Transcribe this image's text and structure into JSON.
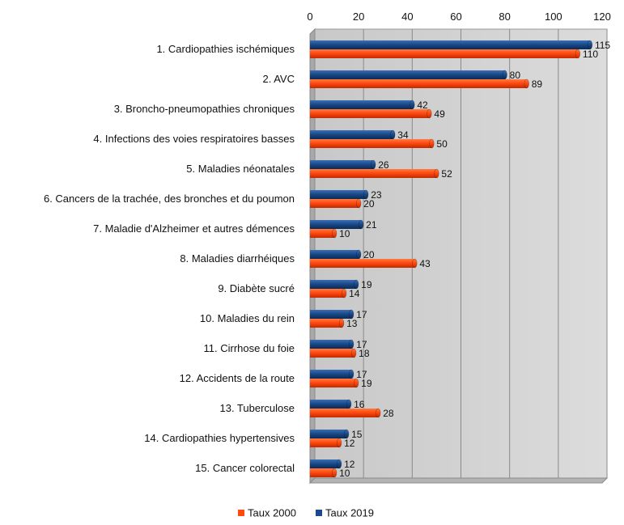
{
  "chart_data": {
    "type": "bar",
    "orientation": "horizontal",
    "title": "",
    "xlabel": "",
    "ylabel": "",
    "xlim": [
      0,
      120
    ],
    "x_ticks": [
      0,
      20,
      40,
      60,
      80,
      100,
      120
    ],
    "x_axis_position": "top",
    "grid": true,
    "legend_position": "bottom",
    "categories": [
      "1. Cardiopathies ischémiques",
      "2. AVC",
      "3. Broncho-pneumopathies chroniques",
      "4. Infections des voies respiratoires basses",
      "5. Maladies néonatales",
      "6. Cancers de la trachée, des bronches  et du poumon",
      "7. Maladie d'Alzheimer et autres démences",
      "8. Maladies diarrhéiques",
      "9. Diabète sucré",
      "10. Maladies du rein",
      "11. Cirrhose du foie",
      "12. Accidents de la route",
      "13. Tuberculose",
      "14. Cardiopathies hypertensives",
      "15. Cancer colorectal"
    ],
    "series": [
      {
        "name": "Taux 2019",
        "color": "#1a4a8a",
        "values": [
          115,
          80,
          42,
          34,
          26,
          23,
          21,
          20,
          19,
          17,
          17,
          17,
          16,
          15,
          12
        ]
      },
      {
        "name": "Taux 2000",
        "color": "#ff4a10",
        "values": [
          110,
          89,
          49,
          50,
          52,
          20,
          10,
          43,
          14,
          13,
          18,
          19,
          28,
          12,
          10
        ]
      }
    ],
    "legend_order": [
      "Taux 2000",
      "Taux 2019"
    ]
  }
}
